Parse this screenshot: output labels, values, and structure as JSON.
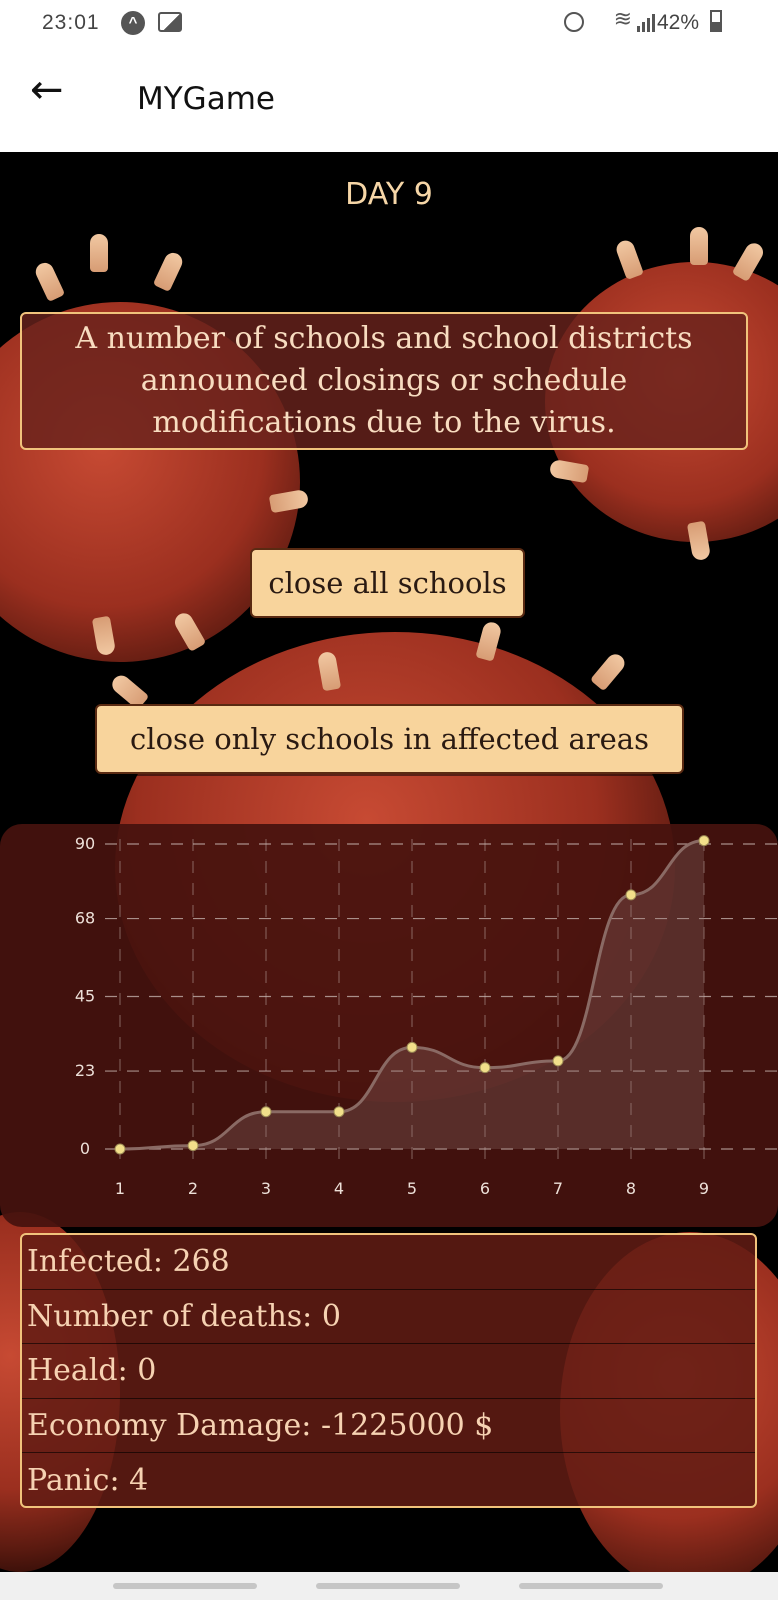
{
  "status": {
    "time": "23:01",
    "battery": "42%",
    "icons": [
      "notification-a-icon",
      "image-icon",
      "alarm-icon",
      "wifi-icon",
      "signal-icon",
      "battery-icon"
    ]
  },
  "app_bar": {
    "back_icon": "back-arrow-icon",
    "title": "MYGame"
  },
  "game": {
    "day_label": "DAY 9",
    "event_text": "A number of schools and school districts announced closings or schedule modifications due to the virus.",
    "choices": [
      {
        "label": "close all schools"
      },
      {
        "label": "close only schools in affected areas"
      }
    ],
    "stats": [
      {
        "text": "Infected: 268"
      },
      {
        "text": "Number of deaths: 0"
      },
      {
        "text": "Heald: 0"
      },
      {
        "text": "Economy Damage: -1225000 $"
      },
      {
        "text": "Panic: 4"
      }
    ]
  },
  "chart_data": {
    "type": "area",
    "x": [
      1,
      2,
      3,
      4,
      5,
      6,
      7,
      8,
      9
    ],
    "values": [
      0,
      1,
      11,
      11,
      30,
      24,
      26,
      75,
      91
    ],
    "y_ticks": [
      "0",
      "23",
      "45",
      "68",
      "90"
    ],
    "x_ticks": [
      "1",
      "2",
      "3",
      "4",
      "5",
      "6",
      "7",
      "8",
      "9"
    ],
    "ylim": [
      0,
      90
    ],
    "grid": true,
    "colors": {
      "line": "#8a6a64",
      "point": "#f2df8a",
      "fill": "rgba(150,120,115,0.28)"
    }
  },
  "nav": {
    "pills": 3
  }
}
